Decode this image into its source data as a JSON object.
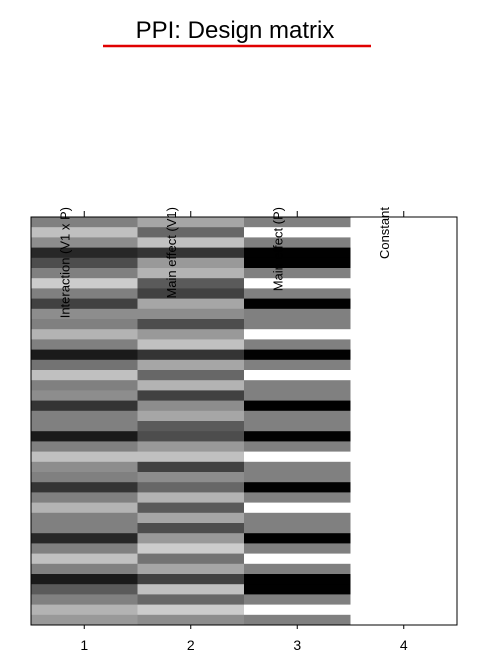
{
  "chart_data": {
    "type": "heatmap",
    "title": "PPI: Design matrix",
    "column_labels": [
      "Interaction (V1 x P)",
      "Main effect (V1)",
      "Main effect (P)",
      "Constant"
    ],
    "categories": [
      "1",
      "2",
      "3",
      "4"
    ],
    "matrix": [
      [
        0,
        0.5,
        0.1,
        -0.7,
        -0.4,
        0,
        0.6,
        0,
        -0.5,
        0.1,
        0,
        0.4,
        0,
        -0.8,
        -0.1,
        0.5,
        0,
        0.1,
        -0.6,
        0,
        0,
        -0.8,
        0,
        0.5,
        0.1,
        0,
        -0.6,
        0,
        0.4,
        0,
        0,
        -0.7,
        0,
        0.5,
        0,
        -0.8,
        -0.3,
        0,
        0.4,
        0.2
      ],
      [
        0.3,
        -0.2,
        0.5,
        -0.6,
        0.2,
        0.4,
        -0.3,
        -0.5,
        0.3,
        0.1,
        -0.4,
        0.2,
        0.5,
        -0.6,
        0.3,
        -0.2,
        0.4,
        -0.5,
        0.1,
        0.3,
        -0.3,
        -0.4,
        0.2,
        0.5,
        -0.5,
        0.1,
        -0.2,
        0.4,
        -0.3,
        0.3,
        -0.4,
        0.2,
        0.6,
        -0.1,
        0.3,
        -0.5,
        0.5,
        -0.2,
        0.6,
        0.1
      ],
      [
        0,
        1,
        0,
        -1,
        -1,
        0,
        1,
        0,
        -1,
        0,
        0,
        1,
        0,
        -1,
        0,
        1,
        0,
        0,
        -1,
        0,
        0,
        -1,
        0,
        1,
        0,
        0,
        -1,
        0,
        1,
        0,
        0,
        -1,
        0,
        1,
        0,
        -1,
        -1,
        0,
        1,
        0
      ],
      [
        1,
        1,
        1,
        1,
        1,
        1,
        1,
        1,
        1,
        1,
        1,
        1,
        1,
        1,
        1,
        1,
        1,
        1,
        1,
        1,
        1,
        1,
        1,
        1,
        1,
        1,
        1,
        1,
        1,
        1,
        1,
        1,
        1,
        1,
        1,
        1,
        1,
        1,
        1,
        1
      ]
    ]
  }
}
